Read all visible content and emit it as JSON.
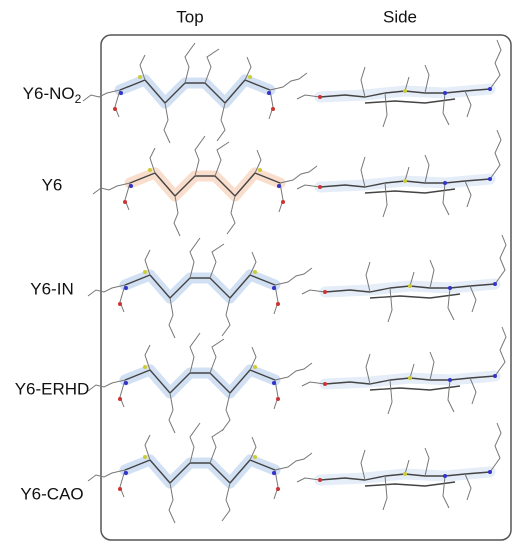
{
  "header": {
    "columns": [
      "Top",
      "Side"
    ]
  },
  "rows": [
    {
      "label": "Y6-NO",
      "subscript": "2"
    },
    {
      "label": "Y6"
    },
    {
      "label": "Y6-IN"
    },
    {
      "label": "Y6-ERHD"
    },
    {
      "label": "Y6-CAO"
    }
  ]
}
